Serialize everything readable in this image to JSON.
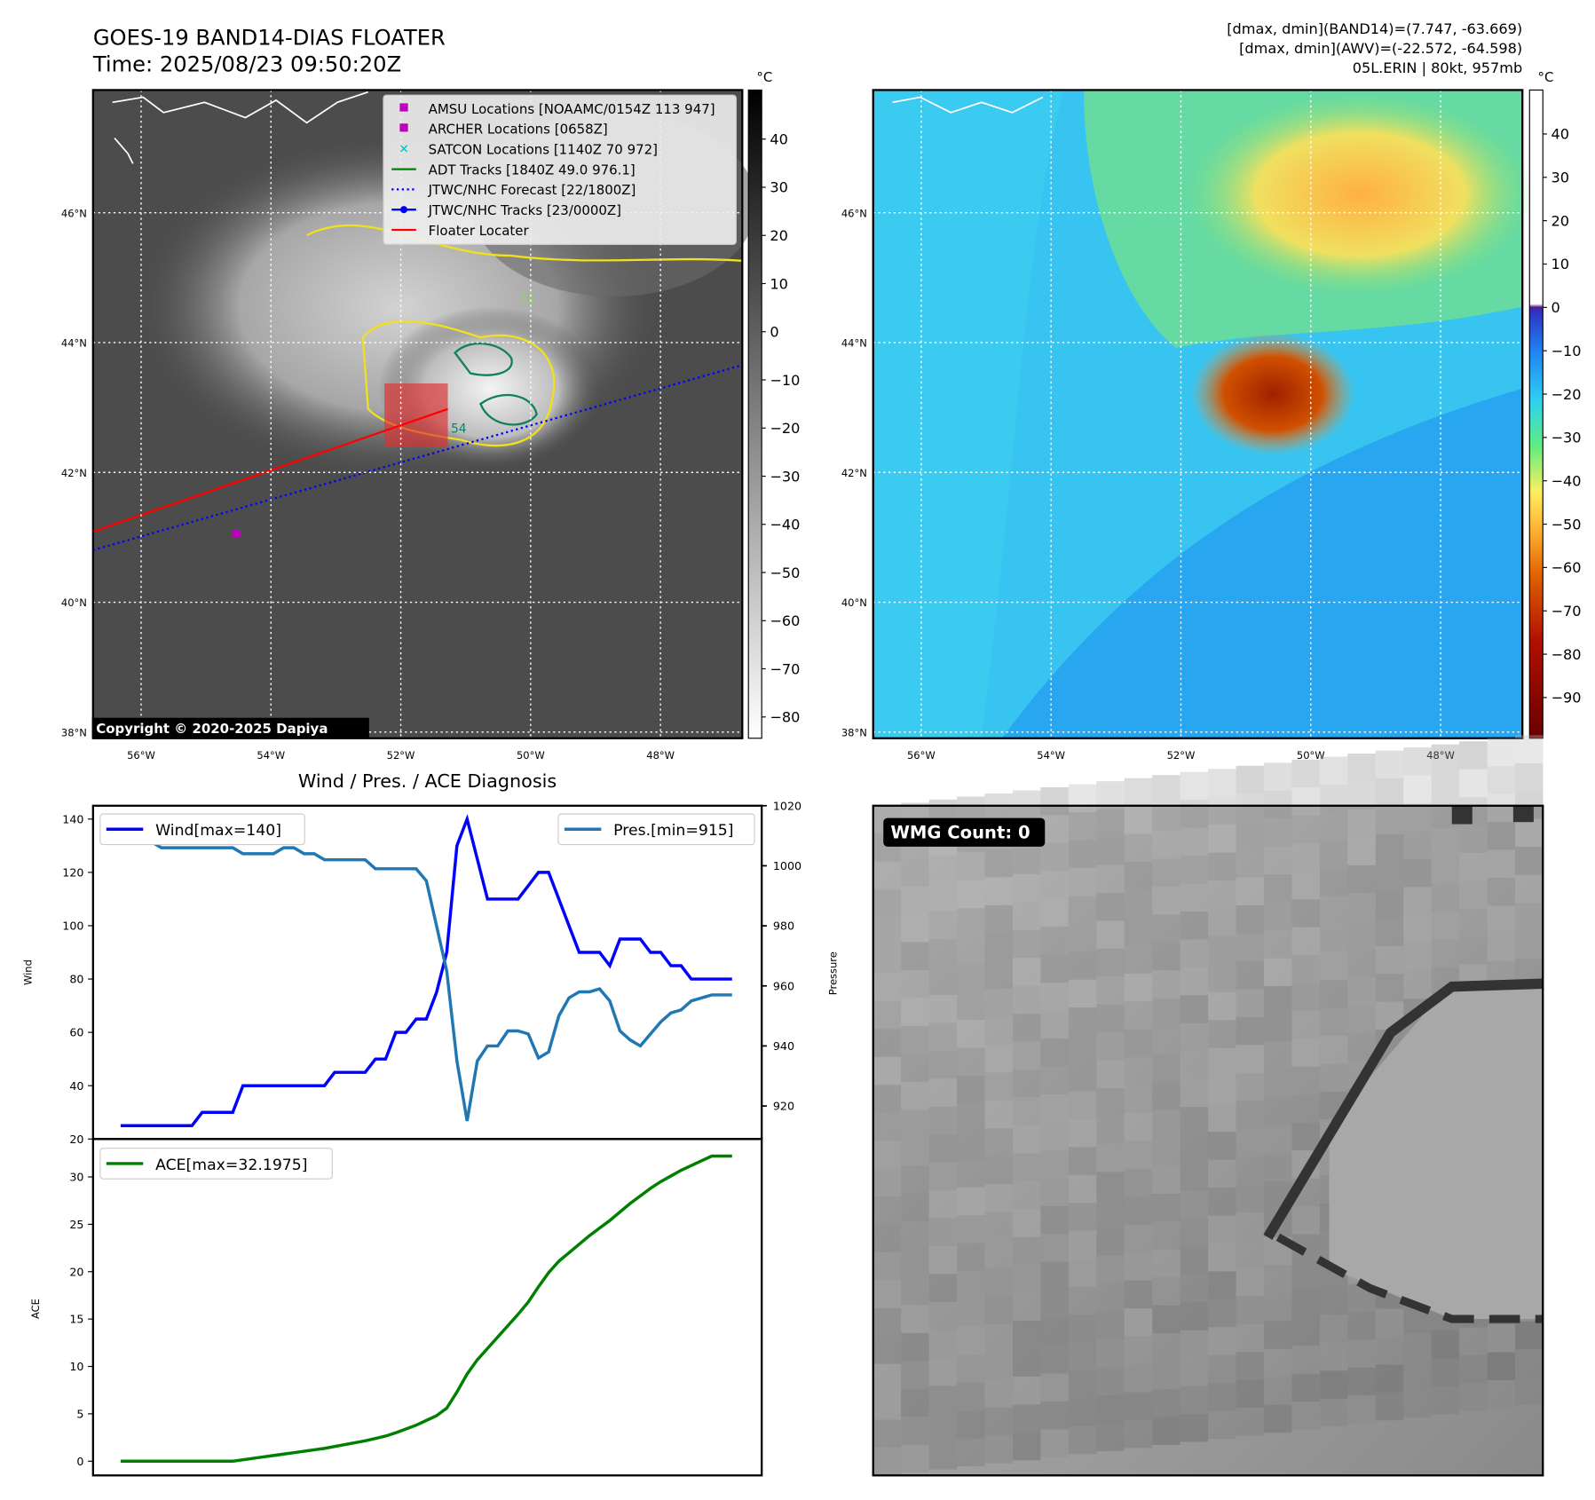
{
  "header": {
    "title_line1": "GOES-19 BAND14-DIAS FLOATER",
    "title_line2": "Time: 2025/08/23 09:50:20Z",
    "stats_line1": "[dmax, dmin](BAND14)=(7.747, -63.669)",
    "stats_line2": "[dmax, dmin](AWV)=(-22.572, -64.598)",
    "stats_line3": "05L.ERIN | 80kt, 957mb"
  },
  "maps": {
    "lat_labels": [
      "46°N",
      "44°N",
      "42°N",
      "40°N",
      "38°N"
    ],
    "lon_labels": [
      "56°W",
      "54°W",
      "52°W",
      "50°W",
      "48°W"
    ],
    "copyright": "Copyright © 2020-2025 Dapiya",
    "contour_labels": [
      "54",
      "31"
    ],
    "left_colorbar": {
      "unit": "°C",
      "ticks": [
        "40",
        "30",
        "20",
        "10",
        "0",
        "−10",
        "−20",
        "−30",
        "−40",
        "−50",
        "−60",
        "−70",
        "−80"
      ]
    },
    "right_colorbar": {
      "unit": "°C",
      "ticks": [
        "40",
        "30",
        "20",
        "10",
        "0",
        "−10",
        "−20",
        "−30",
        "−40",
        "−50",
        "−60",
        "−70",
        "−80",
        "−90"
      ]
    },
    "legend": [
      {
        "label": "AMSU Locations [NOAAMC/0154Z 113 947]",
        "color": "#c000c0",
        "marker": "square"
      },
      {
        "label": "ARCHER Locations [0658Z]",
        "color": "#c000c0",
        "marker": "square"
      },
      {
        "label": "SATCON Locations [1140Z 70 972]",
        "color": "#00c0c0",
        "marker": "x"
      },
      {
        "label": "ADT Tracks [1840Z 49.0 976.1]",
        "color": "#008000",
        "marker": "line"
      },
      {
        "label": "JTWC/NHC Forecast [22/1800Z]",
        "color": "#0000ff",
        "marker": "dotted"
      },
      {
        "label": "JTWC/NHC Tracks [23/0000Z]",
        "color": "#0000ff",
        "marker": "line-dot"
      },
      {
        "label": "Floater Locater",
        "color": "#ff0000",
        "marker": "line"
      }
    ]
  },
  "wmg": {
    "label": "WMG Count: 0"
  },
  "chart_data": [
    {
      "type": "line",
      "title": "Wind / Pres. / ACE Diagnosis",
      "ylabel": "Wind",
      "y2label": "Pressure",
      "ylim": [
        20,
        145
      ],
      "y2lim": [
        909,
        1020
      ],
      "yticks": [
        "20",
        "40",
        "60",
        "80",
        "100",
        "120",
        "140"
      ],
      "y2ticks": [
        "920",
        "940",
        "960",
        "980",
        "1000",
        "1020"
      ],
      "series": [
        {
          "name": "Wind[max=140]",
          "color": "#0000ff",
          "axis": "left",
          "values": [
            25,
            25,
            25,
            25,
            25,
            25,
            25,
            25,
            30,
            30,
            30,
            30,
            40,
            40,
            40,
            40,
            40,
            40,
            40,
            40,
            40,
            45,
            45,
            45,
            45,
            50,
            50,
            60,
            60,
            65,
            65,
            75,
            90,
            130,
            140,
            125,
            110,
            110,
            110,
            110,
            115,
            120,
            120,
            110,
            100,
            90,
            90,
            90,
            85,
            95,
            95,
            95,
            90,
            90,
            85,
            85,
            80,
            80,
            80,
            80,
            80
          ]
        },
        {
          "name": "Pres.[min=915]",
          "color": "#1f77b4",
          "axis": "right",
          "values": [
            1016,
            1016,
            1010,
            1008,
            1006,
            1006,
            1006,
            1006,
            1006,
            1006,
            1006,
            1006,
            1004,
            1004,
            1004,
            1004,
            1006,
            1006,
            1004,
            1004,
            1002,
            1002,
            1002,
            1002,
            1002,
            999,
            999,
            999,
            999,
            999,
            995,
            980,
            965,
            935,
            915,
            935,
            940,
            940,
            945,
            945,
            944,
            936,
            938,
            950,
            956,
            958,
            958,
            959,
            955,
            945,
            942,
            940,
            944,
            948,
            951,
            952,
            955,
            956,
            957,
            957,
            957
          ]
        }
      ]
    },
    {
      "type": "line",
      "ylabel": "ACE",
      "ylim": [
        -1.5,
        34
      ],
      "yticks": [
        "0",
        "5",
        "10",
        "15",
        "20",
        "25",
        "30"
      ],
      "series": [
        {
          "name": "ACE[max=32.1975]",
          "color": "#008000",
          "values": [
            0,
            0,
            0,
            0,
            0,
            0,
            0,
            0,
            0,
            0,
            0,
            0,
            0.15,
            0.3,
            0.45,
            0.6,
            0.75,
            0.9,
            1.05,
            1.2,
            1.35,
            1.55,
            1.75,
            1.95,
            2.15,
            2.4,
            2.65,
            3.0,
            3.4,
            3.8,
            4.3,
            4.8,
            5.6,
            7.3,
            9.2,
            10.7,
            11.9,
            13.1,
            14.3,
            15.5,
            16.8,
            18.4,
            19.9,
            21.1,
            22.0,
            22.9,
            23.8,
            24.6,
            25.4,
            26.3,
            27.2,
            28.0,
            28.8,
            29.5,
            30.1,
            30.7,
            31.2,
            31.7,
            32.2,
            32.2,
            32.2
          ]
        }
      ]
    }
  ]
}
